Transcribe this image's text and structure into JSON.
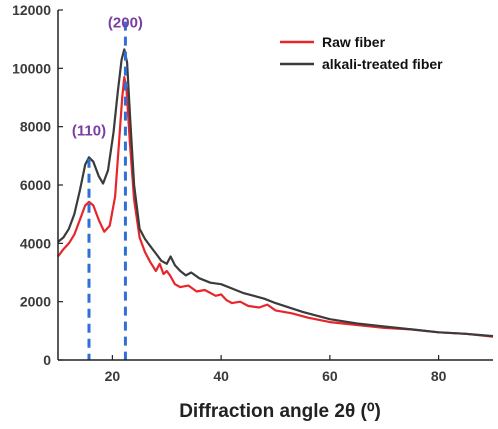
{
  "chart_data": {
    "type": "line",
    "title": "",
    "xlabel": "Diffraction angle 2θ (⁰)",
    "ylabel": "",
    "xlim": [
      10,
      90
    ],
    "ylim": [
      0,
      12000
    ],
    "x_ticks": [
      20,
      40,
      60,
      80
    ],
    "y_ticks": [
      0,
      2000,
      4000,
      6000,
      8000,
      10000,
      12000
    ],
    "grid": false,
    "legend_position": "top-right",
    "series": [
      {
        "name": "Raw fiber",
        "color": "#e8262a",
        "x": [
          10,
          11,
          12,
          13,
          14,
          15,
          15.7,
          16.5,
          17.5,
          18.5,
          19.5,
          20.5,
          21.2,
          21.8,
          22.2,
          22.6,
          23.2,
          24,
          25,
          26,
          27,
          28,
          28.7,
          29.4,
          30,
          30.6,
          31.5,
          32.5,
          34,
          35.5,
          37,
          39,
          40,
          41,
          42,
          43.5,
          45,
          47,
          48.5,
          50,
          53,
          56,
          60,
          65,
          70,
          75,
          80,
          85,
          90
        ],
        "y": [
          3550,
          3800,
          4000,
          4300,
          4800,
          5300,
          5420,
          5300,
          4800,
          4400,
          4600,
          5600,
          7400,
          9000,
          9700,
          9300,
          7500,
          5500,
          4200,
          3700,
          3350,
          3050,
          3300,
          2950,
          3050,
          2900,
          2600,
          2500,
          2550,
          2350,
          2400,
          2200,
          2250,
          2050,
          1950,
          2000,
          1850,
          1800,
          1900,
          1700,
          1600,
          1450,
          1300,
          1200,
          1100,
          1050,
          950,
          900,
          800
        ]
      },
      {
        "name": "alkali-treated fiber",
        "color": "#3b3b3b",
        "x": [
          10,
          11,
          12,
          13,
          14,
          15,
          15.7,
          16.5,
          17.5,
          18.3,
          19.2,
          20.2,
          21,
          21.7,
          22.2,
          22.7,
          23.3,
          24,
          25,
          26,
          27,
          28,
          29,
          30,
          30.7,
          31.5,
          32.5,
          33.5,
          34.5,
          36,
          38,
          40,
          42,
          44,
          46,
          48,
          50,
          55,
          60,
          65,
          70,
          75,
          80,
          85,
          90
        ],
        "y": [
          4050,
          4200,
          4500,
          5000,
          5800,
          6700,
          6950,
          6800,
          6300,
          6050,
          6500,
          7800,
          9200,
          10300,
          10650,
          10200,
          8200,
          6000,
          4500,
          4150,
          3900,
          3650,
          3400,
          3300,
          3550,
          3250,
          3050,
          2900,
          3000,
          2800,
          2650,
          2600,
          2450,
          2300,
          2200,
          2100,
          1950,
          1650,
          1400,
          1250,
          1150,
          1050,
          950,
          900,
          820
        ]
      }
    ],
    "annotations": [
      {
        "text": "(110)",
        "x": 15.7,
        "color": "#7a3ea1"
      },
      {
        "text": "(200)",
        "x": 22.4,
        "color": "#7a3ea1"
      }
    ],
    "reference_lines": [
      {
        "x": 15.7,
        "y_top": 6900,
        "color": "#2f6fd6"
      },
      {
        "x": 22.4,
        "y_top": 11600,
        "color": "#2f6fd6"
      }
    ]
  }
}
